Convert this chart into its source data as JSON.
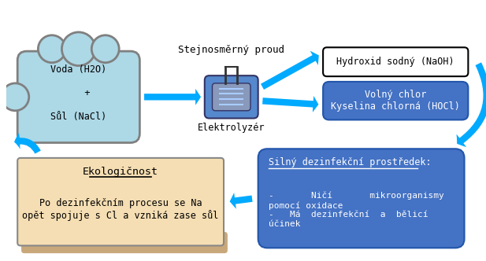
{
  "bg_color": "#ffffff",
  "blue_box_color": "#4472C4",
  "cloud_fill": "#ADD8E6",
  "cloud_stroke": "#808080",
  "naoh_box_color": "#ffffff",
  "naoh_stroke": "#000000",
  "eco_box_color": "#F5DEB3",
  "eco_box_color2": "#C8A87A",
  "disinfect_box_color": "#4472C4",
  "arrow_color": "#00AAFF",
  "text_dark": "#000000",
  "text_white": "#ffffff",
  "title_text": "Stejnosměrný proud",
  "water_text": "Voda (H2O)\n\n   +\n\nSůl (NaCl)",
  "elektrolyzer_label": "Elektrolyzér",
  "naoh_text": "Hydroxid sodný (NaOH)",
  "chlor_text": "Volný chlor\nKyselina chlorná (HOCl)",
  "eco_title": "Ekologičnost",
  "eco_body": "Po dezinfekčním procesu se Na\nopět spojuje s Cl a vzniká zase sůl",
  "disinfect_title": "Silný dezinfekční prostředek:",
  "disinfect_body": "-       Ničí       mikroorganismy\npomocí oxidace\n-   Má  dezinfekční  a  bělicí\núčinek"
}
